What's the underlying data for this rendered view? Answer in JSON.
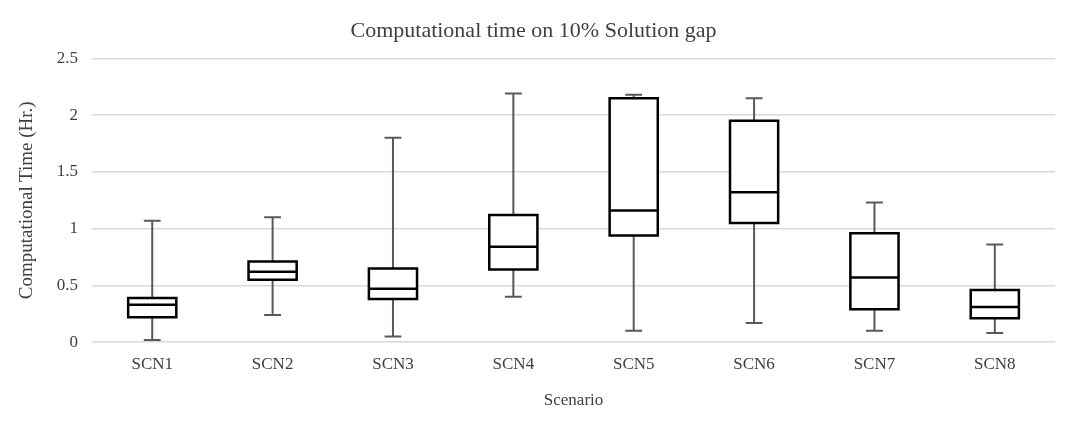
{
  "chart_data": {
    "type": "box",
    "title": "Computational time on 10% Solution gap",
    "xlabel": "Scenario",
    "ylabel": "Computational Time (Hr.)",
    "categories": [
      "SCN1",
      "SCN2",
      "SCN3",
      "SCN4",
      "SCN5",
      "SCN6",
      "SCN7",
      "SCN8"
    ],
    "boxes": [
      {
        "low": 0.02,
        "q1": 0.22,
        "median": 0.33,
        "q3": 0.39,
        "high": 1.07
      },
      {
        "low": 0.24,
        "q1": 0.55,
        "median": 0.62,
        "q3": 0.71,
        "high": 1.1
      },
      {
        "low": 0.05,
        "q1": 0.38,
        "median": 0.47,
        "q3": 0.65,
        "high": 1.8
      },
      {
        "low": 0.4,
        "q1": 0.64,
        "median": 0.84,
        "q3": 1.12,
        "high": 2.19
      },
      {
        "low": 0.1,
        "q1": 0.94,
        "median": 1.16,
        "q3": 2.15,
        "high": 2.18
      },
      {
        "low": 0.17,
        "q1": 1.05,
        "median": 1.32,
        "q3": 1.95,
        "high": 2.15
      },
      {
        "low": 0.1,
        "q1": 0.29,
        "median": 0.57,
        "q3": 0.96,
        "high": 1.23
      },
      {
        "low": 0.08,
        "q1": 0.21,
        "median": 0.31,
        "q3": 0.46,
        "high": 0.86
      }
    ],
    "color": "#000000",
    "ylim": [
      0,
      2.5
    ],
    "yticks": [
      0,
      0.5,
      1,
      1.5,
      2,
      2.5
    ],
    "grid": "y",
    "legend": false
  }
}
